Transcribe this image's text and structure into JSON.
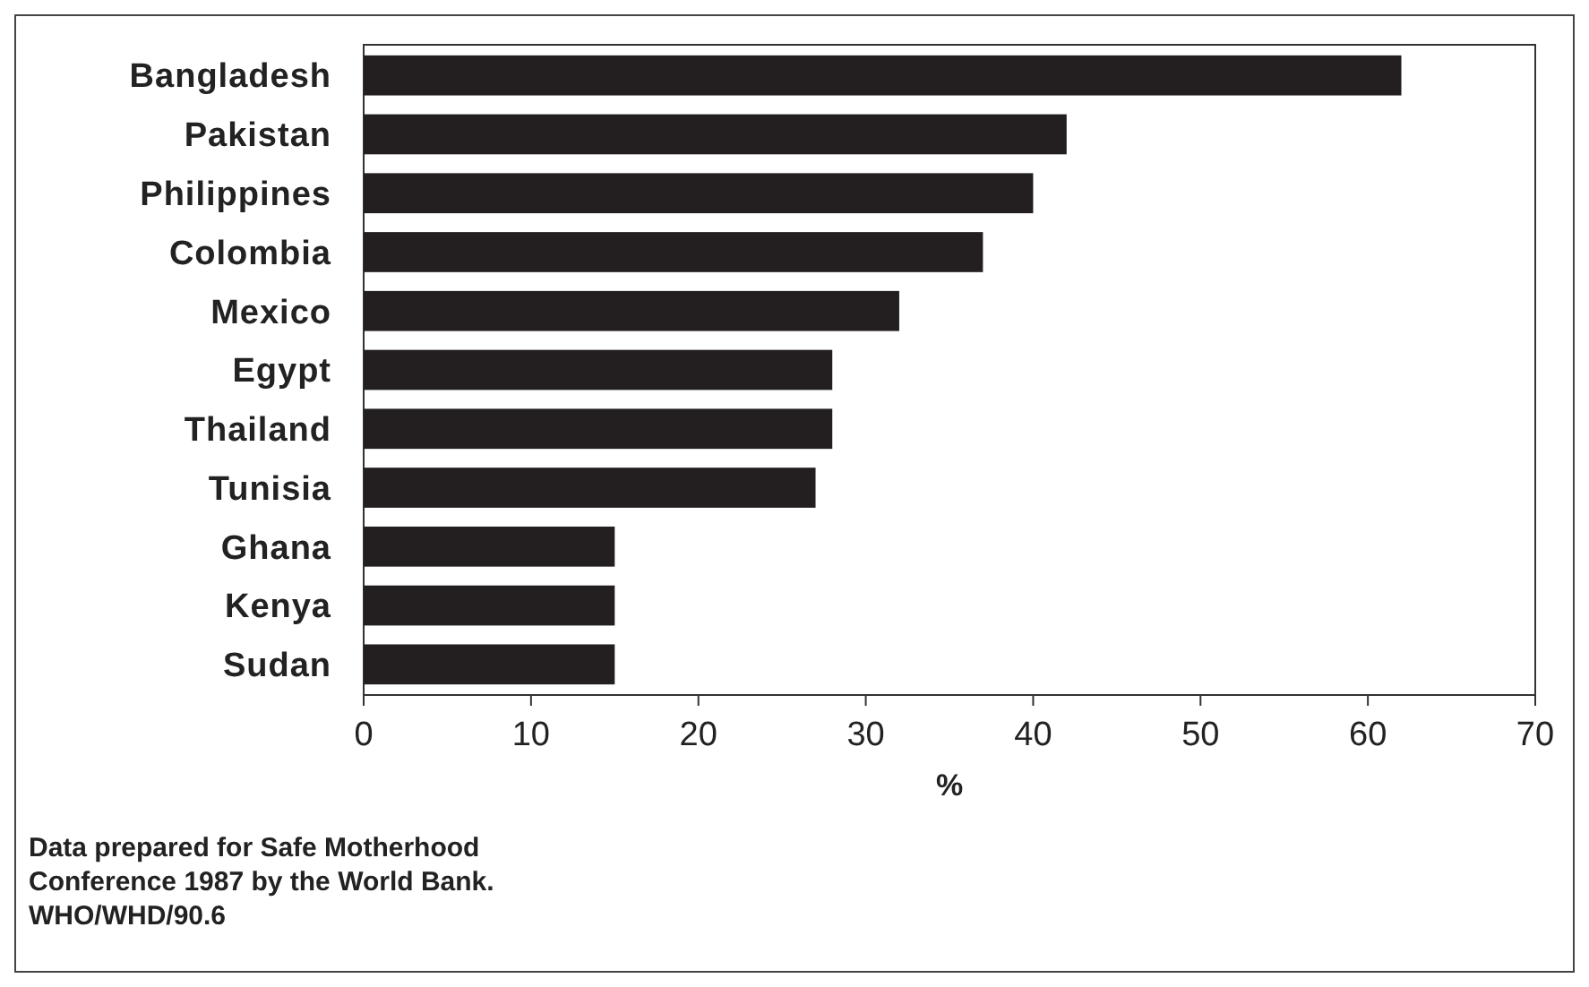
{
  "chart_data": {
    "type": "bar",
    "orientation": "horizontal",
    "xlabel": "%",
    "categories": [
      "Bangladesh",
      "Pakistan",
      "Philippines",
      "Colombia",
      "Mexico",
      "Egypt",
      "Thailand",
      "Tunisia",
      "Ghana",
      "Kenya",
      "Sudan"
    ],
    "values": [
      62,
      42,
      40,
      37,
      32,
      28,
      28,
      27,
      15,
      15,
      15
    ],
    "color": "#231f20",
    "xlim": [
      0,
      70
    ],
    "xticks": [
      0,
      10,
      20,
      30,
      40,
      50,
      60,
      70
    ],
    "grid": false,
    "annotations": [
      "Data prepared for Safe Motherhood\nConference 1987 by the World Bank.\nWHO/WHD/90.6"
    ]
  }
}
